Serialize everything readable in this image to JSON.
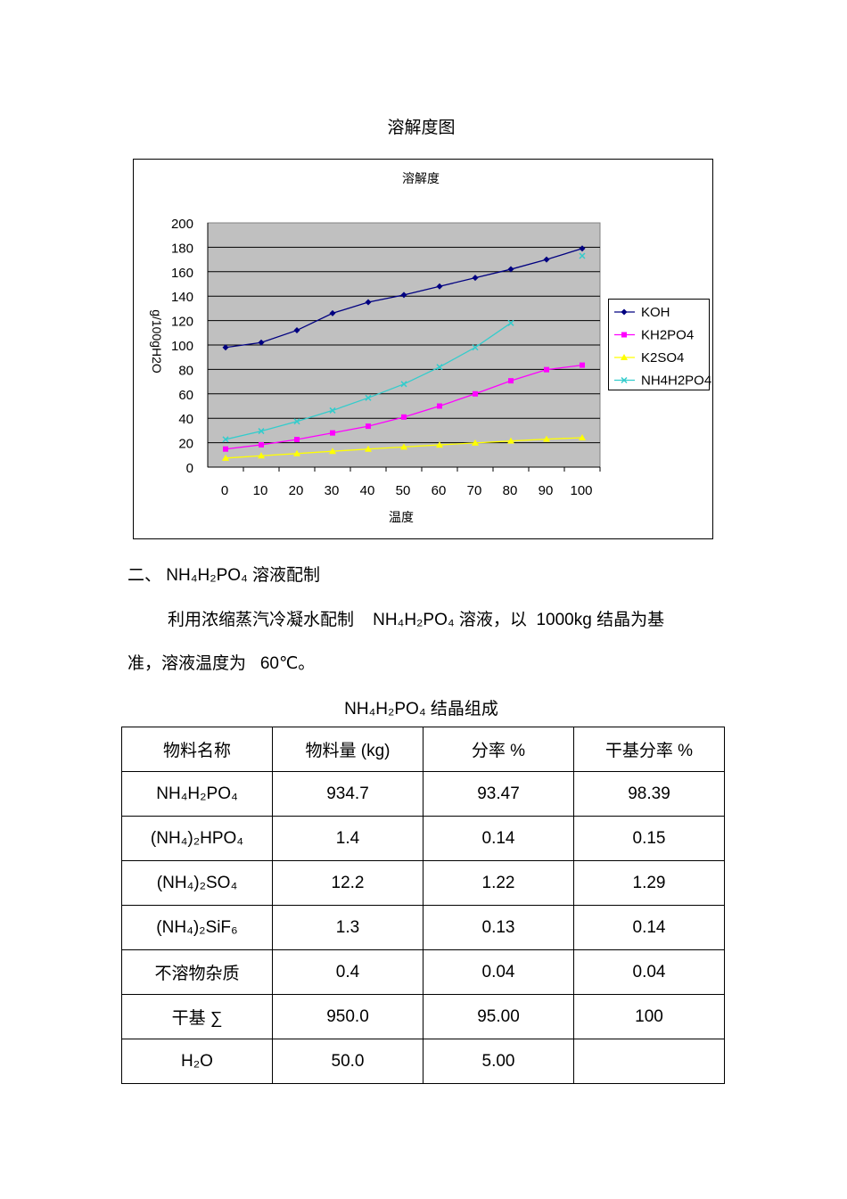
{
  "doc_title": "溶解度图",
  "chart_data": {
    "type": "line",
    "title": "溶解度",
    "xlabel": "温度",
    "ylabel": "g/100gH2O",
    "x": [
      0,
      10,
      20,
      30,
      40,
      50,
      60,
      70,
      80,
      90,
      100
    ],
    "xlim": [
      0,
      100
    ],
    "ylim": [
      0,
      200
    ],
    "yticks": [
      0,
      20,
      40,
      60,
      80,
      100,
      120,
      140,
      160,
      180,
      200
    ],
    "grid": true,
    "legend": "right",
    "series": [
      {
        "name": "KOH",
        "color": "#000080",
        "marker": "diamond",
        "values": [
          98,
          102,
          112,
          126,
          135,
          141,
          148,
          155,
          162,
          170,
          179
        ]
      },
      {
        "name": "KH2PO4",
        "color": "#ff00ff",
        "marker": "square",
        "values": [
          14.8,
          18.3,
          22.6,
          28,
          33.5,
          41,
          50,
          60,
          70.7,
          79.8,
          83.5
        ]
      },
      {
        "name": "K2SO4",
        "color": "#ffff00",
        "marker": "triangle",
        "values": [
          7.4,
          9.3,
          11.1,
          13,
          14.8,
          16.5,
          18.2,
          19.8,
          21.4,
          22.9,
          24.1
        ]
      },
      {
        "name": "NH4H2PO4",
        "color": "#33cccc",
        "marker": "x",
        "values": [
          22.7,
          29.5,
          37.4,
          46.4,
          56.7,
          68,
          82,
          98,
          118,
          null,
          173
        ]
      }
    ]
  },
  "section": {
    "heading": "二、 NH₄H₂PO₄ 溶液配制",
    "para_line1": "利用浓缩蒸汽冷凝水配制    NH₄H₂PO₄ 溶液，以  1000kg 结晶为基",
    "para_line2": "准，溶液温度为   60℃。"
  },
  "table": {
    "caption": "NH₄H₂PO₄ 结晶组成",
    "headers": [
      "物料名称",
      "物料量 (kg)",
      "分率 %",
      "干基分率 %"
    ],
    "rows": [
      [
        "NH₄H₂PO₄",
        "934.7",
        "93.47",
        "98.39"
      ],
      [
        "(NH₄)₂HPO₄",
        "1.4",
        "0.14",
        "0.15"
      ],
      [
        "(NH₄)₂SO₄",
        "12.2",
        "1.22",
        "1.29"
      ],
      [
        "(NH₄)₂SiF₆",
        "1.3",
        "0.13",
        "0.14"
      ],
      [
        "不溶物杂质",
        "0.4",
        "0.04",
        "0.04"
      ],
      [
        "干基 ∑",
        "950.0",
        "95.00",
        "100"
      ],
      [
        "H₂O",
        "50.0",
        "5.00",
        ""
      ]
    ]
  }
}
